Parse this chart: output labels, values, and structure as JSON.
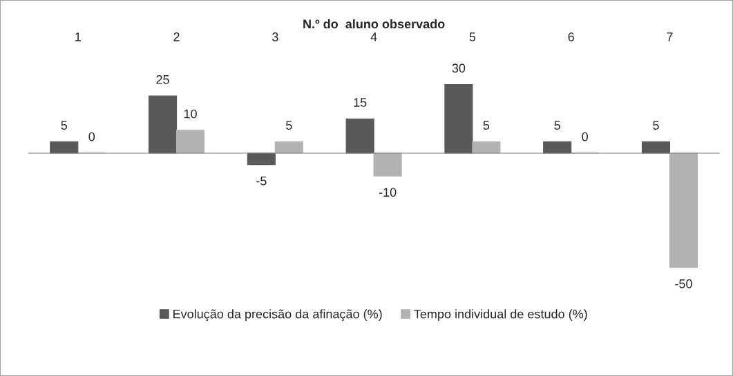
{
  "chart_data": {
    "type": "bar",
    "xlabel": "N.º do  aluno observado",
    "categories": [
      "1",
      "2",
      "3",
      "4",
      "5",
      "6",
      "7"
    ],
    "series": [
      {
        "name": "Evolução da precisão da afinação (%)",
        "color": "#595959",
        "values": [
          5,
          25,
          -5,
          15,
          30,
          5,
          5
        ]
      },
      {
        "name": "Tempo individual de estudo (%)",
        "color": "#b2b2b2",
        "values": [
          0,
          10,
          5,
          -10,
          5,
          0,
          -50
        ]
      }
    ],
    "data_labels": true,
    "legend": "bottom",
    "grid": false
  }
}
